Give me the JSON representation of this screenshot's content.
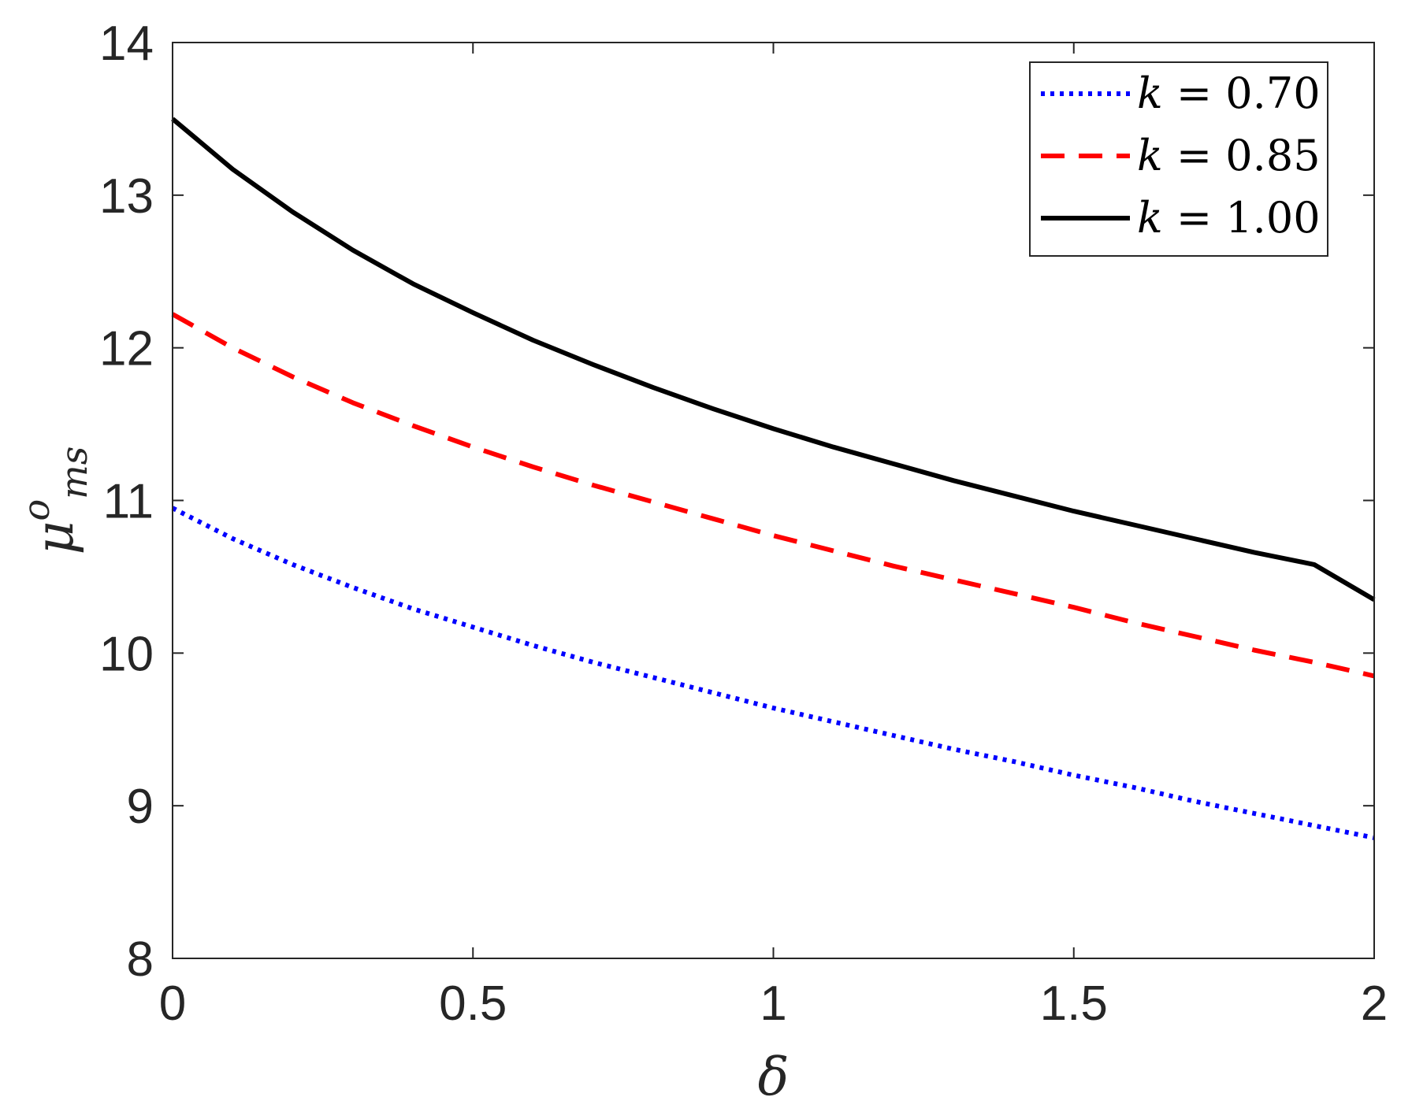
{
  "chart_data": {
    "type": "line",
    "xlabel": "δ",
    "ylabel": {
      "base": "μ",
      "superscript": "o",
      "subscript": "ms"
    },
    "xlim": [
      0,
      2
    ],
    "ylim": [
      8,
      14
    ],
    "xticks": [
      0,
      0.5,
      1,
      1.5,
      2
    ],
    "xtick_labels": [
      "0",
      "0.5",
      "1",
      "1.5",
      "2"
    ],
    "yticks": [
      8,
      9,
      10,
      11,
      12,
      13,
      14
    ],
    "ytick_labels": [
      "8",
      "9",
      "10",
      "11",
      "12",
      "13",
      "14"
    ],
    "grid": false,
    "legend_position": "top-right",
    "x": [
      0,
      0.1,
      0.2,
      0.3,
      0.4,
      0.5,
      0.6,
      0.7,
      0.8,
      0.9,
      1.0,
      1.1,
      1.2,
      1.3,
      1.4,
      1.5,
      1.6,
      1.7,
      1.8,
      1.9,
      2.0
    ],
    "series": [
      {
        "name": "k = 0.70",
        "legend": {
          "var": "k",
          "op": " = ",
          "value": "0.70"
        },
        "color": "#0000ff",
        "style": "dotted",
        "values": [
          10.95,
          10.75,
          10.58,
          10.43,
          10.29,
          10.17,
          10.05,
          9.94,
          9.84,
          9.74,
          9.64,
          9.55,
          9.46,
          9.37,
          9.29,
          9.2,
          9.12,
          9.03,
          8.95,
          8.87,
          8.79
        ]
      },
      {
        "name": "k = 0.85",
        "legend": {
          "var": "k",
          "op": " = ",
          "value": "0.85"
        },
        "color": "#ff0000",
        "style": "dashed",
        "values": [
          12.22,
          12.0,
          11.81,
          11.64,
          11.49,
          11.35,
          11.22,
          11.1,
          10.99,
          10.88,
          10.77,
          10.67,
          10.57,
          10.48,
          10.39,
          10.3,
          10.2,
          10.11,
          10.02,
          9.94,
          9.85
        ]
      },
      {
        "name": "k = 1.00",
        "legend": {
          "var": "k",
          "op": " = ",
          "value": "1.00"
        },
        "color": "#000000",
        "style": "solid",
        "values": [
          13.5,
          13.17,
          12.89,
          12.64,
          12.42,
          12.23,
          12.05,
          11.89,
          11.74,
          11.6,
          11.47,
          11.35,
          11.24,
          11.13,
          11.03,
          10.93,
          10.84,
          10.75,
          10.66,
          10.58,
          10.35
        ]
      }
    ]
  }
}
